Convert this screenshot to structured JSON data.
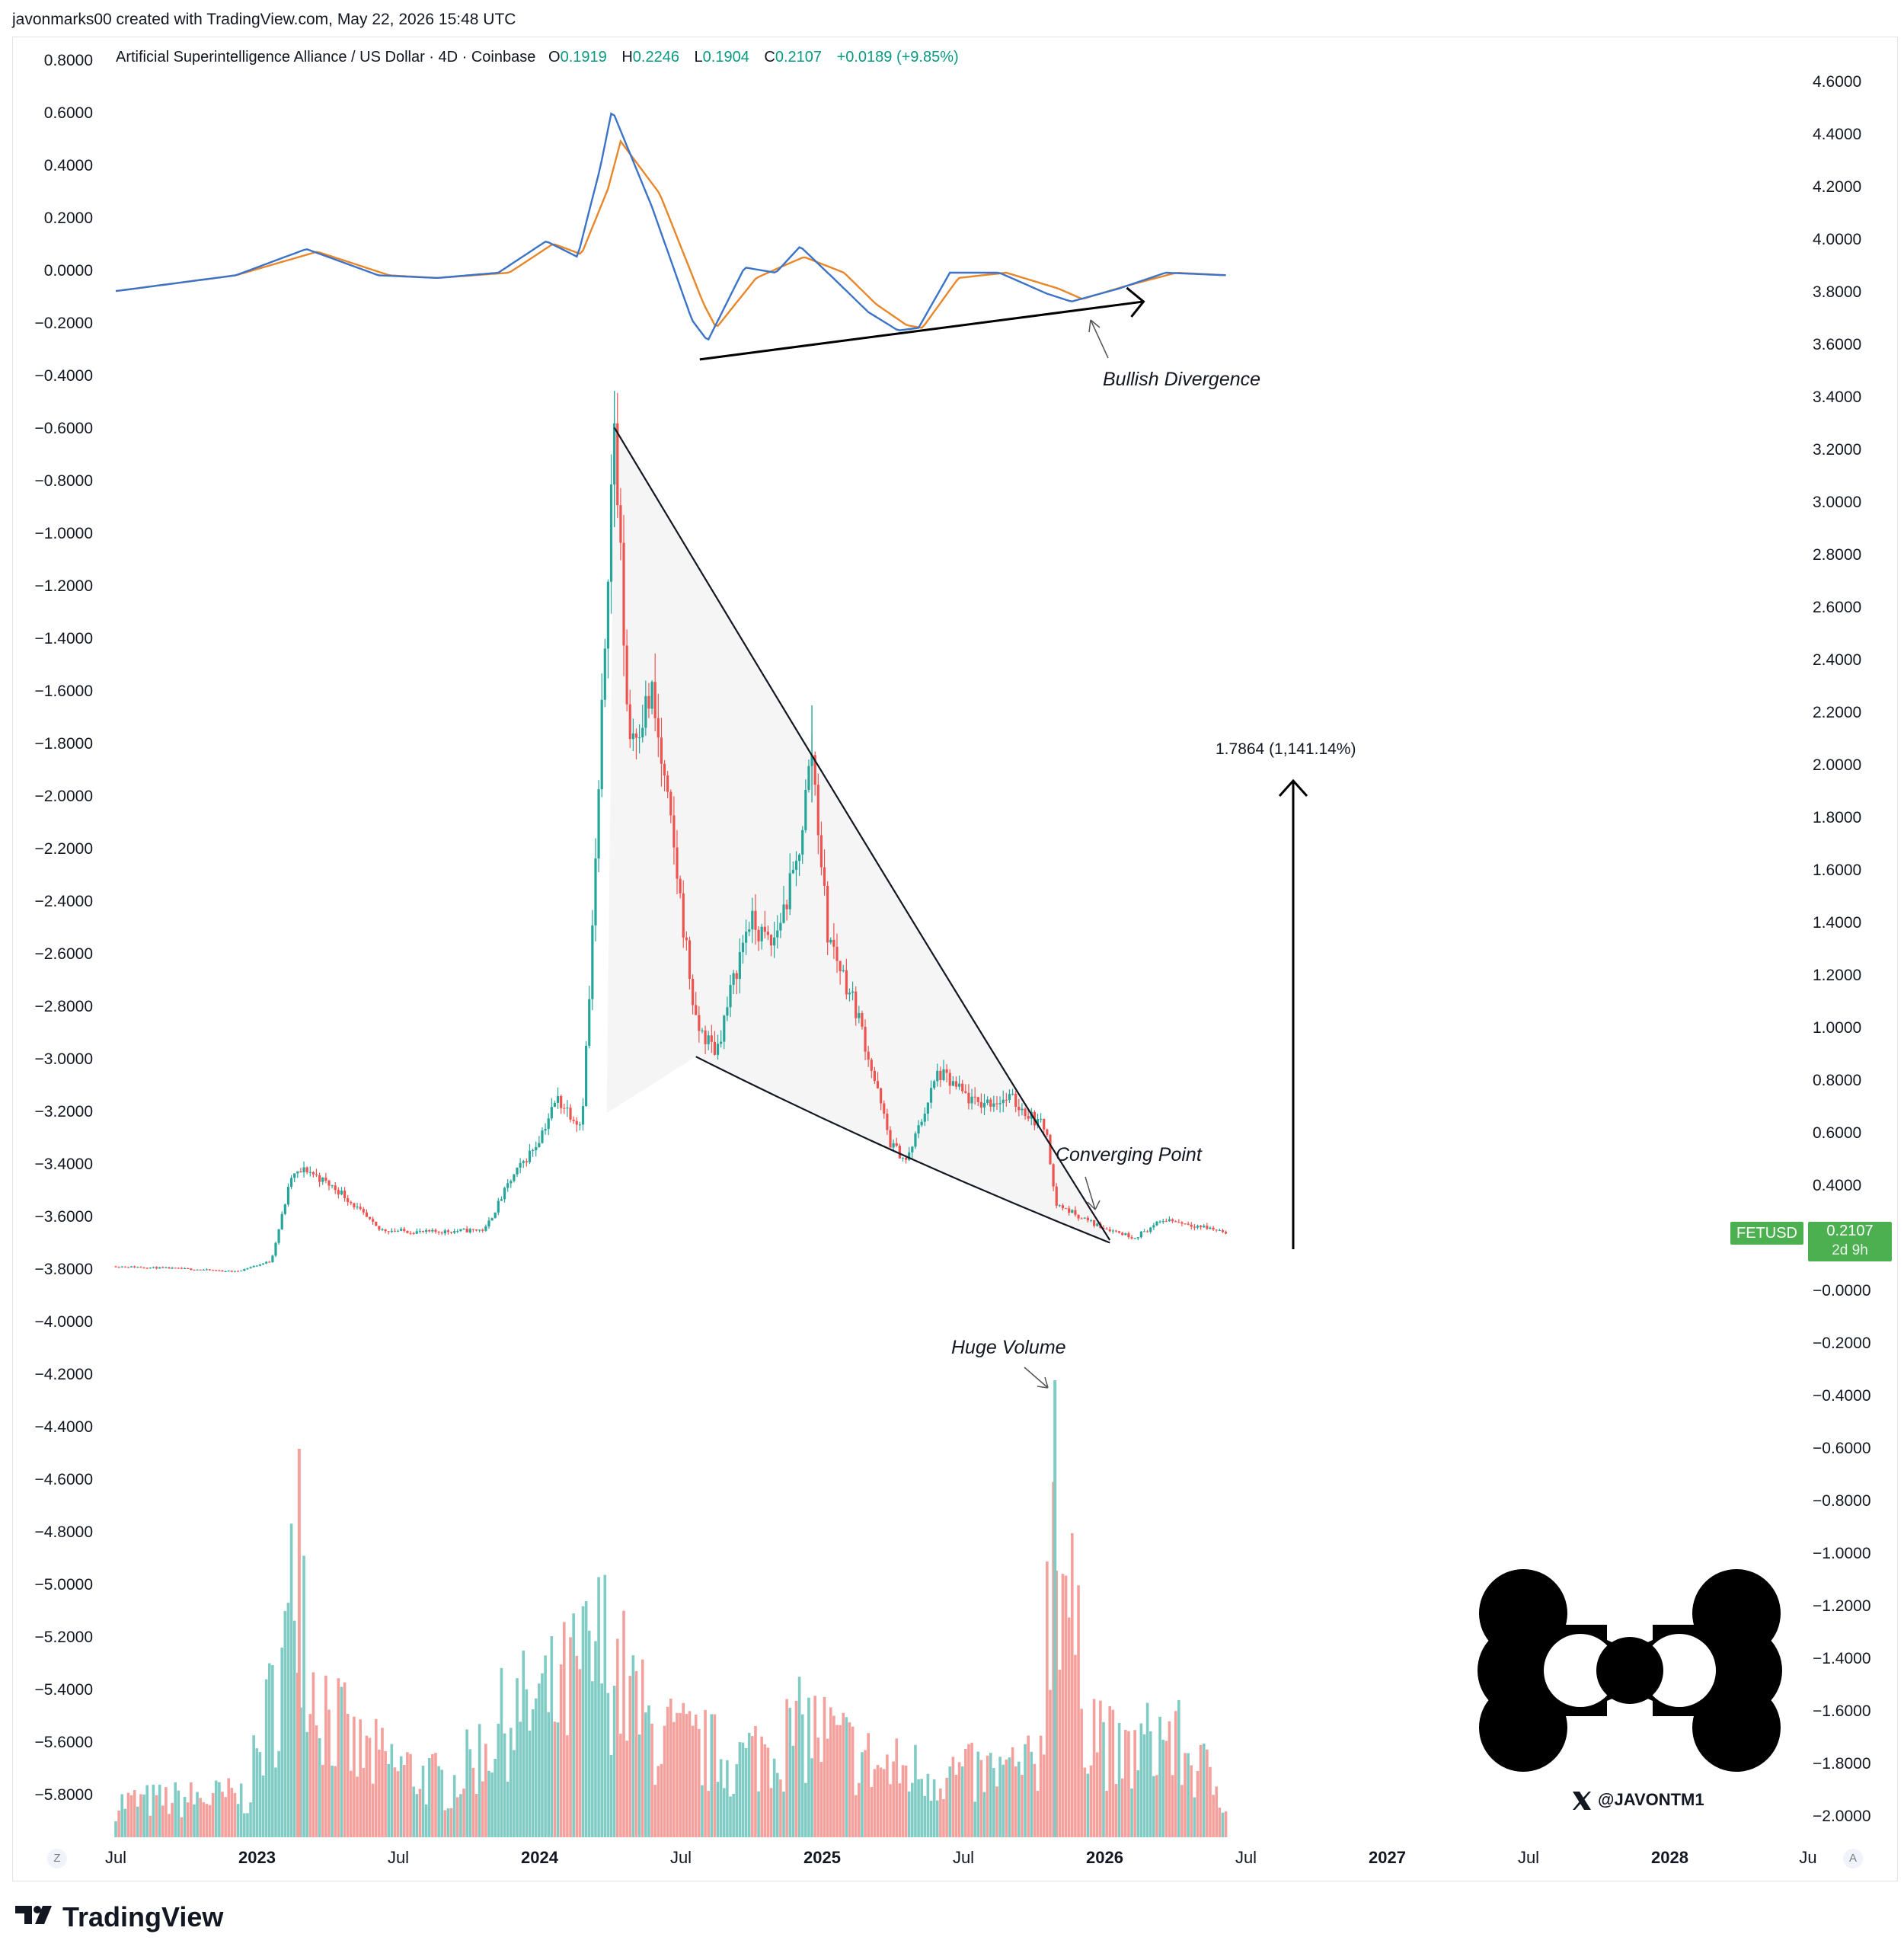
{
  "header": {
    "creator": "javonmarks00 created with TradingView.com, May 22, 2026 15:48 UTC"
  },
  "legend": {
    "title": "Artificial Superintelligence Alliance / US Dollar · 4D · Coinbase",
    "open_label": "O",
    "open": "0.1919",
    "high_label": "H",
    "high": "0.2246",
    "low_label": "L",
    "low": "0.1904",
    "close_label": "C",
    "close": "0.2107",
    "change": "+0.0189 (+9.85%)"
  },
  "left_axis_ticks": [
    "0.8000",
    "0.6000",
    "0.4000",
    "0.2000",
    "0.0000",
    "−0.2000",
    "−0.4000",
    "−0.6000",
    "−0.8000",
    "−1.0000",
    "−1.2000",
    "−1.4000",
    "−1.6000",
    "−1.8000",
    "−2.0000",
    "−2.2000",
    "−2.4000",
    "−2.6000",
    "−2.8000",
    "−3.0000",
    "−3.2000",
    "−3.4000",
    "−3.6000",
    "−3.8000",
    "−4.0000",
    "−4.2000",
    "−4.4000",
    "−4.6000",
    "−4.8000",
    "−5.0000",
    "−5.2000",
    "−5.4000",
    "−5.6000",
    "−5.8000"
  ],
  "right_axis_ticks": [
    "4.6000",
    "4.4000",
    "4.2000",
    "4.0000",
    "3.8000",
    "3.6000",
    "3.4000",
    "3.2000",
    "3.0000",
    "2.8000",
    "2.6000",
    "2.4000",
    "2.2000",
    "2.0000",
    "1.8000",
    "1.6000",
    "1.4000",
    "1.2000",
    "1.0000",
    "0.8000",
    "0.6000",
    "0.4000",
    "−0.0000",
    "−0.2000",
    "−0.4000",
    "−0.6000",
    "−0.8000",
    "−1.0000",
    "−1.2000",
    "−1.4000",
    "−1.6000",
    "−1.8000",
    "−2.0000"
  ],
  "x_axis_ticks": [
    {
      "label": "Jul",
      "bold": false
    },
    {
      "label": "2023",
      "bold": true
    },
    {
      "label": "Jul",
      "bold": false
    },
    {
      "label": "2024",
      "bold": true
    },
    {
      "label": "Jul",
      "bold": false
    },
    {
      "label": "2025",
      "bold": true
    },
    {
      "label": "Jul",
      "bold": false
    },
    {
      "label": "2026",
      "bold": true
    },
    {
      "label": "Jul",
      "bold": false
    },
    {
      "label": "2027",
      "bold": true
    },
    {
      "label": "Jul",
      "bold": false
    },
    {
      "label": "2028",
      "bold": true
    },
    {
      "label": "Ju",
      "bold": false
    }
  ],
  "buttons": {
    "left": "Z",
    "right": "A"
  },
  "annotations": {
    "bullish_divergence": "Bullish Divergence",
    "converging_point": "Converging Point",
    "huge_volume": "Huge Volume",
    "measure": "1.7864 (1,141.14%)"
  },
  "price_tag": {
    "symbol": "FETUSD",
    "price": "0.2107",
    "countdown": "2d 9h"
  },
  "watermark": {
    "handle": "@JAVONTM1"
  },
  "footer": {
    "brand": "TradingView"
  },
  "colors": {
    "up": "#26a69a",
    "down": "#ef5350",
    "vol_up": "#80cbc4",
    "vol_down": "#f4a09c",
    "osc_fast": "#3b73c8",
    "osc_slow": "#e8862a",
    "tag": "#4caf50"
  },
  "chart_data": {
    "type": "candlestick",
    "symbol": "FETUSD",
    "interval": "4D",
    "y_price_range": [
      0,
      3.45
    ],
    "price_path": [
      [
        "2022-07-01",
        0.08
      ],
      [
        "2022-10-01",
        0.07
      ],
      [
        "2022-12-01",
        0.06
      ],
      [
        "2023-01-15",
        0.1
      ],
      [
        "2023-02-10",
        0.42
      ],
      [
        "2023-03-01",
        0.45
      ],
      [
        "2023-04-15",
        0.36
      ],
      [
        "2023-06-01",
        0.22
      ],
      [
        "2023-08-01",
        0.21
      ],
      [
        "2023-10-15",
        0.22
      ],
      [
        "2023-11-15",
        0.4
      ],
      [
        "2023-12-20",
        0.55
      ],
      [
        "2024-01-15",
        0.72
      ],
      [
        "2024-02-15",
        0.62
      ],
      [
        "2024-02-25",
        1.1
      ],
      [
        "2024-03-10",
        2.0
      ],
      [
        "2024-03-20",
        2.8
      ],
      [
        "2024-03-28",
        3.28
      ],
      [
        "2024-04-15",
        2.1
      ],
      [
        "2024-05-15",
        2.25
      ],
      [
        "2024-06-15",
        1.6
      ],
      [
        "2024-07-10",
        1.0
      ],
      [
        "2024-08-05",
        0.9
      ],
      [
        "2024-09-15",
        1.4
      ],
      [
        "2024-10-15",
        1.3
      ],
      [
        "2024-11-15",
        1.6
      ],
      [
        "2024-12-05",
        2.05
      ],
      [
        "2024-12-25",
        1.35
      ],
      [
        "2025-02-01",
        1.05
      ],
      [
        "2025-03-15",
        0.55
      ],
      [
        "2025-04-05",
        0.48
      ],
      [
        "2025-05-15",
        0.82
      ],
      [
        "2025-07-01",
        0.7
      ],
      [
        "2025-08-15",
        0.72
      ],
      [
        "2025-10-01",
        0.6
      ],
      [
        "2025-10-11",
        0.32
      ],
      [
        "2025-12-01",
        0.24
      ],
      [
        "2026-01-20",
        0.19
      ],
      [
        "2026-03-01",
        0.26
      ],
      [
        "2026-05-20",
        0.21
      ]
    ],
    "volume_path": [
      [
        "2022-07-01",
        0.1
      ],
      [
        "2022-12-15",
        0.12
      ],
      [
        "2023-02-05",
        0.55
      ],
      [
        "2023-02-20",
        0.85
      ],
      [
        "2023-03-10",
        0.45
      ],
      [
        "2023-05-01",
        0.25
      ],
      [
        "2023-09-01",
        0.15
      ],
      [
        "2023-11-15",
        0.35
      ],
      [
        "2024-01-15",
        0.4
      ],
      [
        "2024-03-15",
        0.55
      ],
      [
        "2024-05-15",
        0.3
      ],
      [
        "2024-09-01",
        0.22
      ],
      [
        "2024-12-01",
        0.32
      ],
      [
        "2025-03-01",
        0.2
      ],
      [
        "2025-07-01",
        0.18
      ],
      [
        "2025-09-20",
        0.2
      ],
      [
        "2025-10-11",
        1.0
      ],
      [
        "2025-11-15",
        0.4
      ],
      [
        "2026-01-01",
        0.22
      ],
      [
        "2026-03-01",
        0.3
      ],
      [
        "2026-05-20",
        0.12
      ]
    ],
    "oscillator": {
      "range": [
        -0.3,
        0.65
      ],
      "fast_path": [
        [
          "2022-07-01",
          -0.07
        ],
        [
          "2022-12-01",
          -0.01
        ],
        [
          "2023-03-01",
          0.09
        ],
        [
          "2023-06-01",
          -0.01
        ],
        [
          "2023-08-15",
          -0.02
        ],
        [
          "2023-11-01",
          0.0
        ],
        [
          "2024-01-01",
          0.12
        ],
        [
          "2024-02-10",
          0.06
        ],
        [
          "2024-03-10",
          0.4
        ],
        [
          "2024-03-25",
          0.62
        ],
        [
          "2024-05-15",
          0.25
        ],
        [
          "2024-07-05",
          -0.18
        ],
        [
          "2024-07-25",
          -0.26
        ],
        [
          "2024-09-10",
          0.02
        ],
        [
          "2024-10-20",
          0.0
        ],
        [
          "2024-11-20",
          0.1
        ],
        [
          "2025-01-01",
          -0.02
        ],
        [
          "2025-02-15",
          -0.15
        ],
        [
          "2025-03-25",
          -0.22
        ],
        [
          "2025-04-20",
          -0.21
        ],
        [
          "2025-05-30",
          0.0
        ],
        [
          "2025-08-01",
          0.0
        ],
        [
          "2025-10-01",
          -0.08
        ],
        [
          "2025-11-01",
          -0.11
        ],
        [
          "2026-01-01",
          -0.06
        ],
        [
          "2026-03-01",
          0.0
        ],
        [
          "2026-05-20",
          -0.01
        ]
      ],
      "slow_path": [
        [
          "2022-07-01",
          -0.07
        ],
        [
          "2022-12-01",
          -0.01
        ],
        [
          "2023-03-15",
          0.08
        ],
        [
          "2023-06-15",
          -0.01
        ],
        [
          "2023-08-15",
          -0.02
        ],
        [
          "2023-11-15",
          0.0
        ],
        [
          "2024-01-10",
          0.11
        ],
        [
          "2024-02-15",
          0.07
        ],
        [
          "2024-03-20",
          0.32
        ],
        [
          "2024-04-05",
          0.5
        ],
        [
          "2024-05-25",
          0.3
        ],
        [
          "2024-07-20",
          -0.12
        ],
        [
          "2024-08-05",
          -0.21
        ],
        [
          "2024-09-25",
          -0.02
        ],
        [
          "2024-10-25",
          0.02
        ],
        [
          "2024-11-25",
          0.06
        ],
        [
          "2025-01-15",
          0.0
        ],
        [
          "2025-02-25",
          -0.12
        ],
        [
          "2025-04-05",
          -0.2
        ],
        [
          "2025-04-25",
          -0.21
        ],
        [
          "2025-06-10",
          -0.02
        ],
        [
          "2025-08-10",
          0.0
        ],
        [
          "2025-10-15",
          -0.06
        ],
        [
          "2025-11-15",
          -0.1
        ],
        [
          "2026-01-10",
          -0.05
        ],
        [
          "2026-03-15",
          0.0
        ],
        [
          "2026-05-20",
          -0.01
        ]
      ]
    },
    "falling_wedge": {
      "upper": [
        [
          "2024-03-28",
          3.28
        ],
        [
          "2025-12-20",
          0.18
        ]
      ],
      "lower": [
        [
          "2024-07-10",
          0.88
        ],
        [
          "2025-03-20",
          0.47
        ],
        [
          "2025-12-20",
          0.17
        ]
      ]
    },
    "divergence_line": [
      [
        "2024-07-15",
        -0.33
      ],
      [
        "2026-02-01",
        -0.11
      ]
    ],
    "measure": {
      "value": 1.7864,
      "percent": "1,141.14%"
    }
  }
}
